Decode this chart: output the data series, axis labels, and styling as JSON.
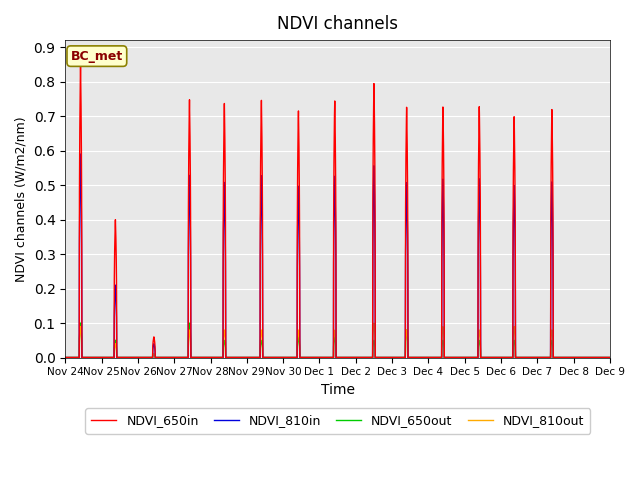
{
  "title": "NDVI channels",
  "xlabel": "Time",
  "ylabel": "NDVI channels (W/m2/nm)",
  "annotation": "BC_met",
  "ylim": [
    0.0,
    0.92
  ],
  "yticks": [
    0.0,
    0.1,
    0.2,
    0.3,
    0.4,
    0.5,
    0.6,
    0.7,
    0.8,
    0.9
  ],
  "bg_color": "#e8e8e8",
  "colors": {
    "NDVI_650in": "#ff0000",
    "NDVI_810in": "#0000dd",
    "NDVI_650out": "#00cc00",
    "NDVI_810out": "#ffaa00"
  },
  "peaks": [
    {
      "day": 0.42,
      "r": 0.85,
      "b": 0.59,
      "g": 0.1,
      "o": 0.09,
      "b2": 0.53
    },
    {
      "day": 1.38,
      "r": 0.4,
      "b": 0.21,
      "g": 0.05,
      "o": 0.04,
      "b2": 0.13
    },
    {
      "day": 2.44,
      "r": 0.06,
      "b": 0.04,
      "g": 0.01,
      "o": 0.01,
      "b2": 0.03
    },
    {
      "day": 3.42,
      "r": 0.75,
      "b": 0.53,
      "g": 0.1,
      "o": 0.08,
      "b2": 0.41
    },
    {
      "day": 4.38,
      "r": 0.74,
      "b": 0.51,
      "g": 0.05,
      "o": 0.08,
      "b2": 0.2
    },
    {
      "day": 5.4,
      "r": 0.75,
      "b": 0.53,
      "g": 0.05,
      "o": 0.08,
      "b2": 0.53
    },
    {
      "day": 6.42,
      "r": 0.72,
      "b": 0.5,
      "g": 0.06,
      "o": 0.08,
      "b2": 0.5
    },
    {
      "day": 7.42,
      "r": 0.75,
      "b": 0.53,
      "g": 0.06,
      "o": 0.08,
      "b2": 0.56
    },
    {
      "day": 8.5,
      "r": 0.8,
      "b": 0.56,
      "g": 0.05,
      "o": 0.1,
      "b2": 0.56
    },
    {
      "day": 9.4,
      "r": 0.73,
      "b": 0.51,
      "g": 0.08,
      "o": 0.08,
      "b2": 0.51
    },
    {
      "day": 10.4,
      "r": 0.73,
      "b": 0.52,
      "g": 0.05,
      "o": 0.09,
      "b2": 0.52
    },
    {
      "day": 11.4,
      "r": 0.73,
      "b": 0.52,
      "g": 0.05,
      "o": 0.08,
      "b2": 0.52
    },
    {
      "day": 12.36,
      "r": 0.7,
      "b": 0.5,
      "g": 0.05,
      "o": 0.09,
      "b2": 0.5
    },
    {
      "day": 13.4,
      "r": 0.72,
      "b": 0.51,
      "g": 0.05,
      "o": 0.08,
      "b2": 0.51
    }
  ],
  "tick_labels": [
    "Nov 24",
    "Nov 25",
    "Nov 26",
    "Nov 27",
    "Nov 28",
    "Nov 29",
    "Nov 30",
    "Dec 1",
    "Dec 2",
    "Dec 3",
    "Dec 4",
    "Dec 5",
    "Dec 6",
    "Dec 7",
    "Dec 8",
    "Dec 9"
  ],
  "tick_positions": [
    0,
    1,
    2,
    3,
    4,
    5,
    6,
    7,
    8,
    9,
    10,
    11,
    12,
    13,
    14,
    15
  ],
  "figsize": [
    6.4,
    4.8
  ],
  "dpi": 100
}
